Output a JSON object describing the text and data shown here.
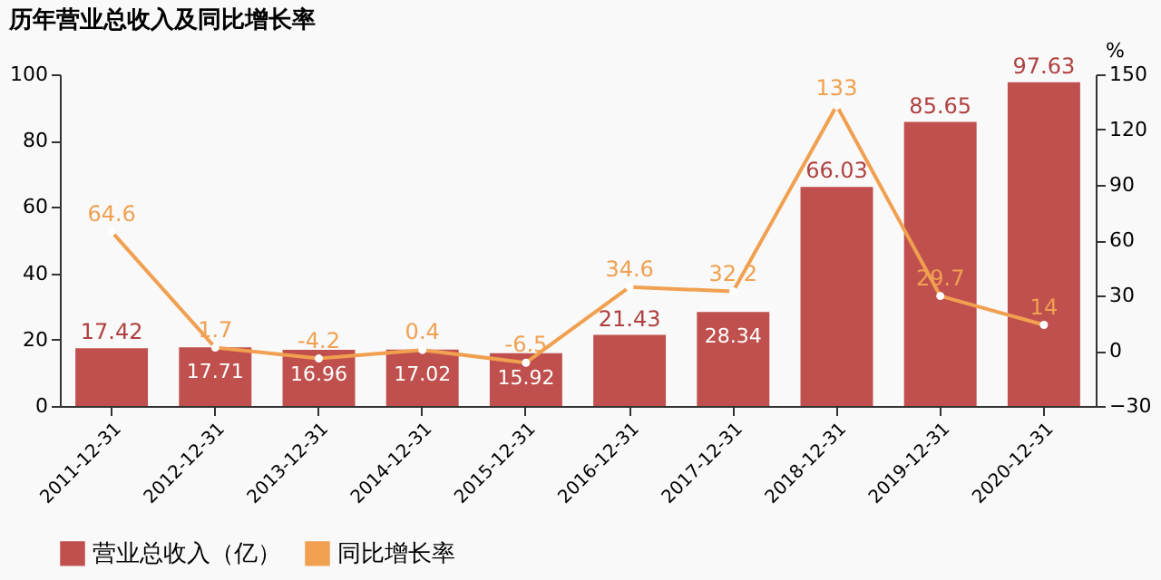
{
  "chart_data": {
    "type": "bar",
    "title": "历年营业总收入及同比增长率",
    "categories": [
      "2011-12-31",
      "2012-12-31",
      "2013-12-31",
      "2014-12-31",
      "2015-12-31",
      "2016-12-31",
      "2017-12-31",
      "2018-12-31",
      "2019-12-31",
      "2020-12-31"
    ],
    "series": [
      {
        "name": "营业总收入（亿）",
        "color": "#c0504d",
        "values": [
          17.42,
          17.71,
          16.96,
          17.02,
          15.92,
          21.43,
          28.34,
          66.03,
          85.65,
          97.63
        ]
      },
      {
        "name": "同比增长率",
        "type": "line",
        "axis": "y2",
        "color": "#f0a050",
        "marker": "circle",
        "values": [
          64.6,
          1.7,
          -4.2,
          0.4,
          -6.5,
          34.6,
          32.2,
          133,
          29.7,
          14
        ]
      }
    ],
    "ylim": [
      0,
      100
    ],
    "yticks": [
      0,
      20,
      40,
      60,
      80,
      100
    ],
    "y2label": "%",
    "y2lim": [
      -30,
      150
    ],
    "y2ticks": [
      -30,
      0,
      30,
      60,
      90,
      120,
      150
    ],
    "data_labels": true,
    "legend": "bottom",
    "grid": false
  }
}
